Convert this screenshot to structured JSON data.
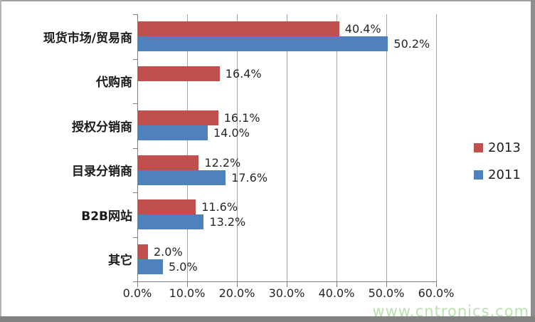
{
  "chart_data": {
    "type": "bar",
    "orientation": "horizontal",
    "title": "",
    "categories": [
      "现货市场/贸易商",
      "代购商",
      "授权分销商",
      "目录分销商",
      "B2B网站",
      "其它"
    ],
    "series": [
      {
        "name": "2013",
        "color": "#C0504D",
        "values": [
          40.4,
          16.4,
          16.1,
          12.2,
          11.6,
          2.0
        ],
        "labels": [
          "40.4%",
          "16.4%",
          "16.1%",
          "12.2%",
          "11.6%",
          "2.0%"
        ]
      },
      {
        "name": "2011",
        "color": "#4F81BD",
        "values": [
          50.2,
          null,
          14.0,
          17.6,
          13.2,
          5.0
        ],
        "labels": [
          "50.2%",
          null,
          "14.0%",
          "17.6%",
          "13.2%",
          "5.0%"
        ]
      }
    ],
    "x_axis": {
      "min": 0,
      "max": 60,
      "ticks": [
        "0.0%",
        "10.0%",
        "20.0%",
        "30.0%",
        "40.0%",
        "50.0%",
        "60.0%"
      ]
    },
    "grid": true,
    "legend_position": "right",
    "axis_color": "#7f7f7f",
    "grid_color": "#a6a6a6"
  },
  "watermark": {
    "text": "www.cntronics.com",
    "color": "#b9e2ae"
  }
}
